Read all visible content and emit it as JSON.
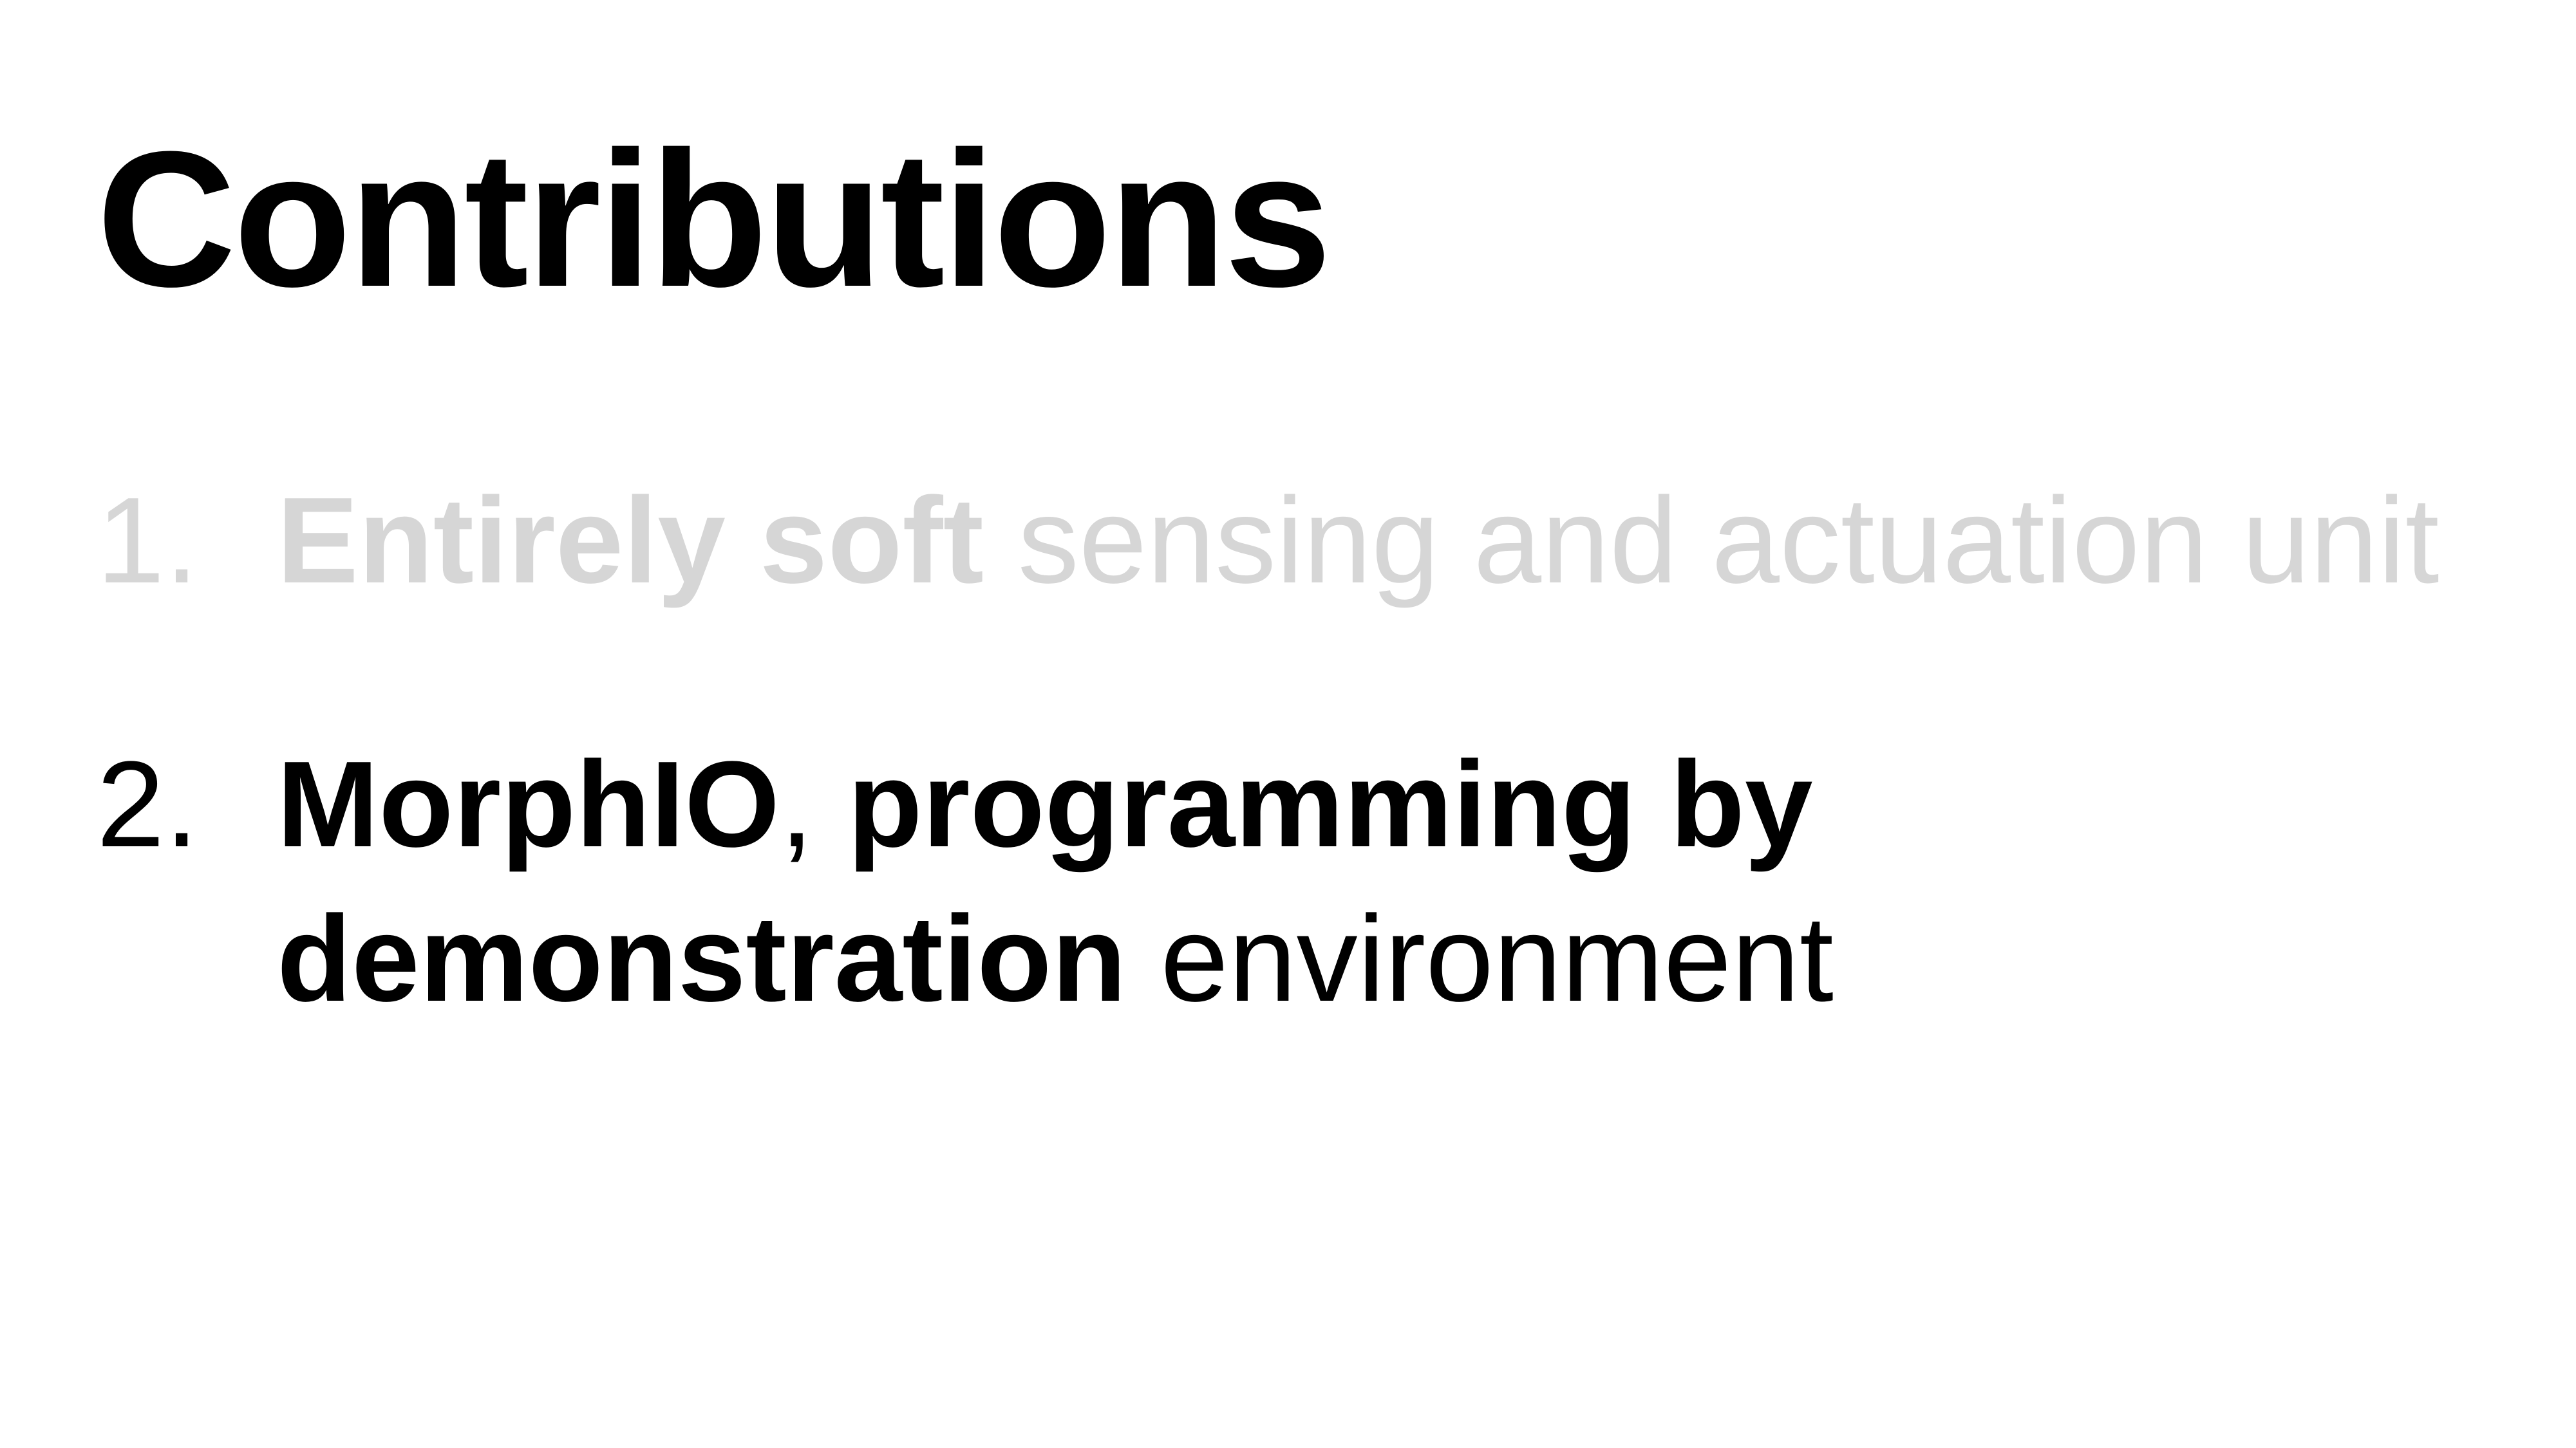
{
  "slide": {
    "title": "Contributions",
    "items": [
      {
        "number": "1.",
        "bold": "Entirely soft",
        "regular": " sensing and actuation unit",
        "color": "#d6d6d6"
      },
      {
        "number": "2.",
        "bold_1": "MorphIO",
        "regular_1": ", ",
        "bold_2": "programming by demonstration",
        "regular_2": " environment",
        "color": "#000000"
      }
    ]
  }
}
